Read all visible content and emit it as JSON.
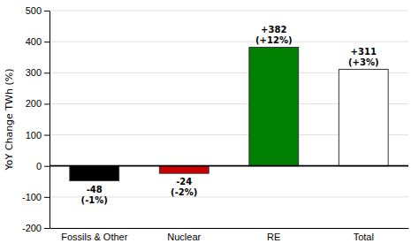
{
  "chart_data": {
    "type": "bar",
    "categories": [
      "Fossils & Other",
      "Nuclear",
      "RE",
      "Total"
    ],
    "values": [
      -48,
      -24,
      382,
      311
    ],
    "colors": [
      "#000000",
      "#cc0000",
      "#008000",
      "#ffffff"
    ],
    "data_labels": true,
    "value_labels": [
      "-48",
      "-24",
      "+382",
      "+311"
    ],
    "annotations": [
      "(-1%)",
      "(-2%)",
      "(+12%)",
      "(+3%)"
    ],
    "y_label": "YoY Change TWh (%)",
    "ylim": [
      -200,
      500
    ],
    "yticks": [
      -200,
      -100,
      0,
      100,
      200,
      300,
      400,
      500
    ],
    "grid": true
  }
}
